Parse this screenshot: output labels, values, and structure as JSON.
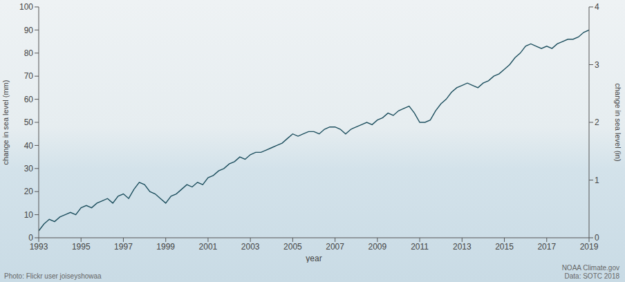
{
  "chart_data": {
    "type": "line",
    "xlabel": "year",
    "ylabel": "change in sea level (mm)",
    "y2label": "change in sea level (in)",
    "annotations": [
      "Photo: Flickr user joiseyshowaa",
      "NOAA Climate.gov",
      "Data: SOTC 2018"
    ],
    "color": "#1d4f5e",
    "grid": false,
    "xlim": [
      1993,
      2019
    ],
    "xticks": [
      1993,
      1995,
      1997,
      1999,
      2001,
      2003,
      2005,
      2007,
      2009,
      2011,
      2013,
      2015,
      2017,
      2019
    ],
    "ylim": [
      0,
      100
    ],
    "yticks": [
      0,
      10,
      20,
      30,
      40,
      50,
      60,
      70,
      80,
      90,
      100
    ],
    "y2lim": [
      0,
      4
    ],
    "y2ticks": [
      0,
      1,
      2,
      3,
      4
    ],
    "x": [
      1993,
      1993.25,
      1993.5,
      1993.75,
      1994,
      1994.25,
      1994.5,
      1994.75,
      1995,
      1995.25,
      1995.5,
      1995.75,
      1996,
      1996.25,
      1996.5,
      1996.75,
      1997,
      1997.25,
      1997.5,
      1997.75,
      1998,
      1998.25,
      1998.5,
      1998.75,
      1999,
      1999.25,
      1999.5,
      1999.75,
      2000,
      2000.25,
      2000.5,
      2000.75,
      2001,
      2001.25,
      2001.5,
      2001.75,
      2002,
      2002.25,
      2002.5,
      2002.75,
      2003,
      2003.25,
      2003.5,
      2003.75,
      2004,
      2004.25,
      2004.5,
      2004.75,
      2005,
      2005.25,
      2005.5,
      2005.75,
      2006,
      2006.25,
      2006.5,
      2006.75,
      2007,
      2007.25,
      2007.5,
      2007.75,
      2008,
      2008.25,
      2008.5,
      2008.75,
      2009,
      2009.25,
      2009.5,
      2009.75,
      2010,
      2010.25,
      2010.5,
      2010.75,
      2011,
      2011.25,
      2011.5,
      2011.75,
      2012,
      2012.25,
      2012.5,
      2012.75,
      2013,
      2013.25,
      2013.5,
      2013.75,
      2014,
      2014.25,
      2014.5,
      2014.75,
      2015,
      2015.25,
      2015.5,
      2015.75,
      2016,
      2016.25,
      2016.5,
      2016.75,
      2017,
      2017.25,
      2017.5,
      2017.75,
      2018,
      2018.25,
      2018.5,
      2018.75,
      2019
    ],
    "values": [
      3,
      6,
      8,
      7,
      9,
      10,
      11,
      10,
      13,
      14,
      13,
      15,
      16,
      17,
      15,
      18,
      19,
      17,
      21,
      24,
      23,
      20,
      19,
      17,
      15,
      18,
      19,
      21,
      23,
      22,
      24,
      23,
      26,
      27,
      29,
      30,
      32,
      33,
      35,
      34,
      36,
      37,
      37,
      38,
      39,
      40,
      41,
      43,
      45,
      44,
      45,
      46,
      46,
      45,
      47,
      48,
      48,
      47,
      45,
      47,
      48,
      49,
      50,
      49,
      51,
      52,
      54,
      53,
      55,
      56,
      57,
      54,
      50,
      50,
      51,
      55,
      58,
      60,
      63,
      65,
      66,
      67,
      66,
      65,
      67,
      68,
      70,
      71,
      73,
      75,
      78,
      80,
      83,
      84,
      83,
      82,
      83,
      82,
      84,
      85,
      86,
      86,
      87,
      89,
      90
    ]
  }
}
